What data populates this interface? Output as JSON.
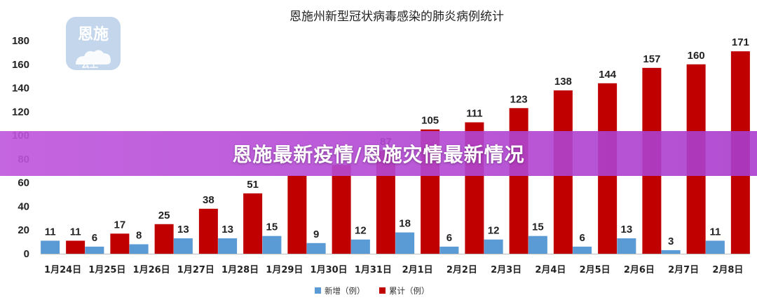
{
  "overlay": {
    "banner_text": "恩施最新疫情/恩施灾情最新情况"
  },
  "watermark": {
    "top_text": "恩施",
    "bottom_text": "云上",
    "icon": "cloud-icon"
  },
  "colors": {
    "new": "#5b9bd5",
    "total": "#c00000",
    "banner": "#b04fd6"
  },
  "chart_data": {
    "type": "bar",
    "title": "恩施州新型冠状病毒感染的肺炎病例统计",
    "xlabel": "",
    "ylabel": "",
    "ylim": [
      0,
      180
    ],
    "yticks": [
      0,
      20,
      40,
      60,
      80,
      100,
      120,
      140,
      160,
      180
    ],
    "grid": false,
    "legend_position": "bottom",
    "categories": [
      "1月24日",
      "1月25日",
      "1月26日",
      "1月27日",
      "1月28日",
      "1月29日",
      "1月30日",
      "1月31日",
      "2月1日",
      "2月2日",
      "2月3日",
      "2月4日",
      "2月5日",
      "2月6日",
      "2月7日",
      "2月8日"
    ],
    "series": [
      {
        "name": "新增（例）",
        "values": [
          11,
          6,
          8,
          13,
          13,
          15,
          9,
          12,
          18,
          6,
          12,
          15,
          6,
          13,
          3,
          11
        ]
      },
      {
        "name": "累计（例）",
        "values": [
          11,
          17,
          25,
          38,
          51,
          66,
          75,
          87,
          105,
          111,
          123,
          138,
          144,
          157,
          160,
          171
        ]
      }
    ],
    "data_labels": [
      [
        "11",
        "6",
        "8",
        "13",
        "13",
        "15",
        "9",
        "12",
        "18",
        "6",
        "12",
        "15",
        "6",
        "13",
        "3",
        "11"
      ],
      [
        "11",
        "17",
        "25",
        "38",
        "51",
        "",
        "",
        "87",
        "105",
        "111",
        "123",
        "138",
        "144",
        "157",
        "160",
        "171"
      ]
    ]
  }
}
